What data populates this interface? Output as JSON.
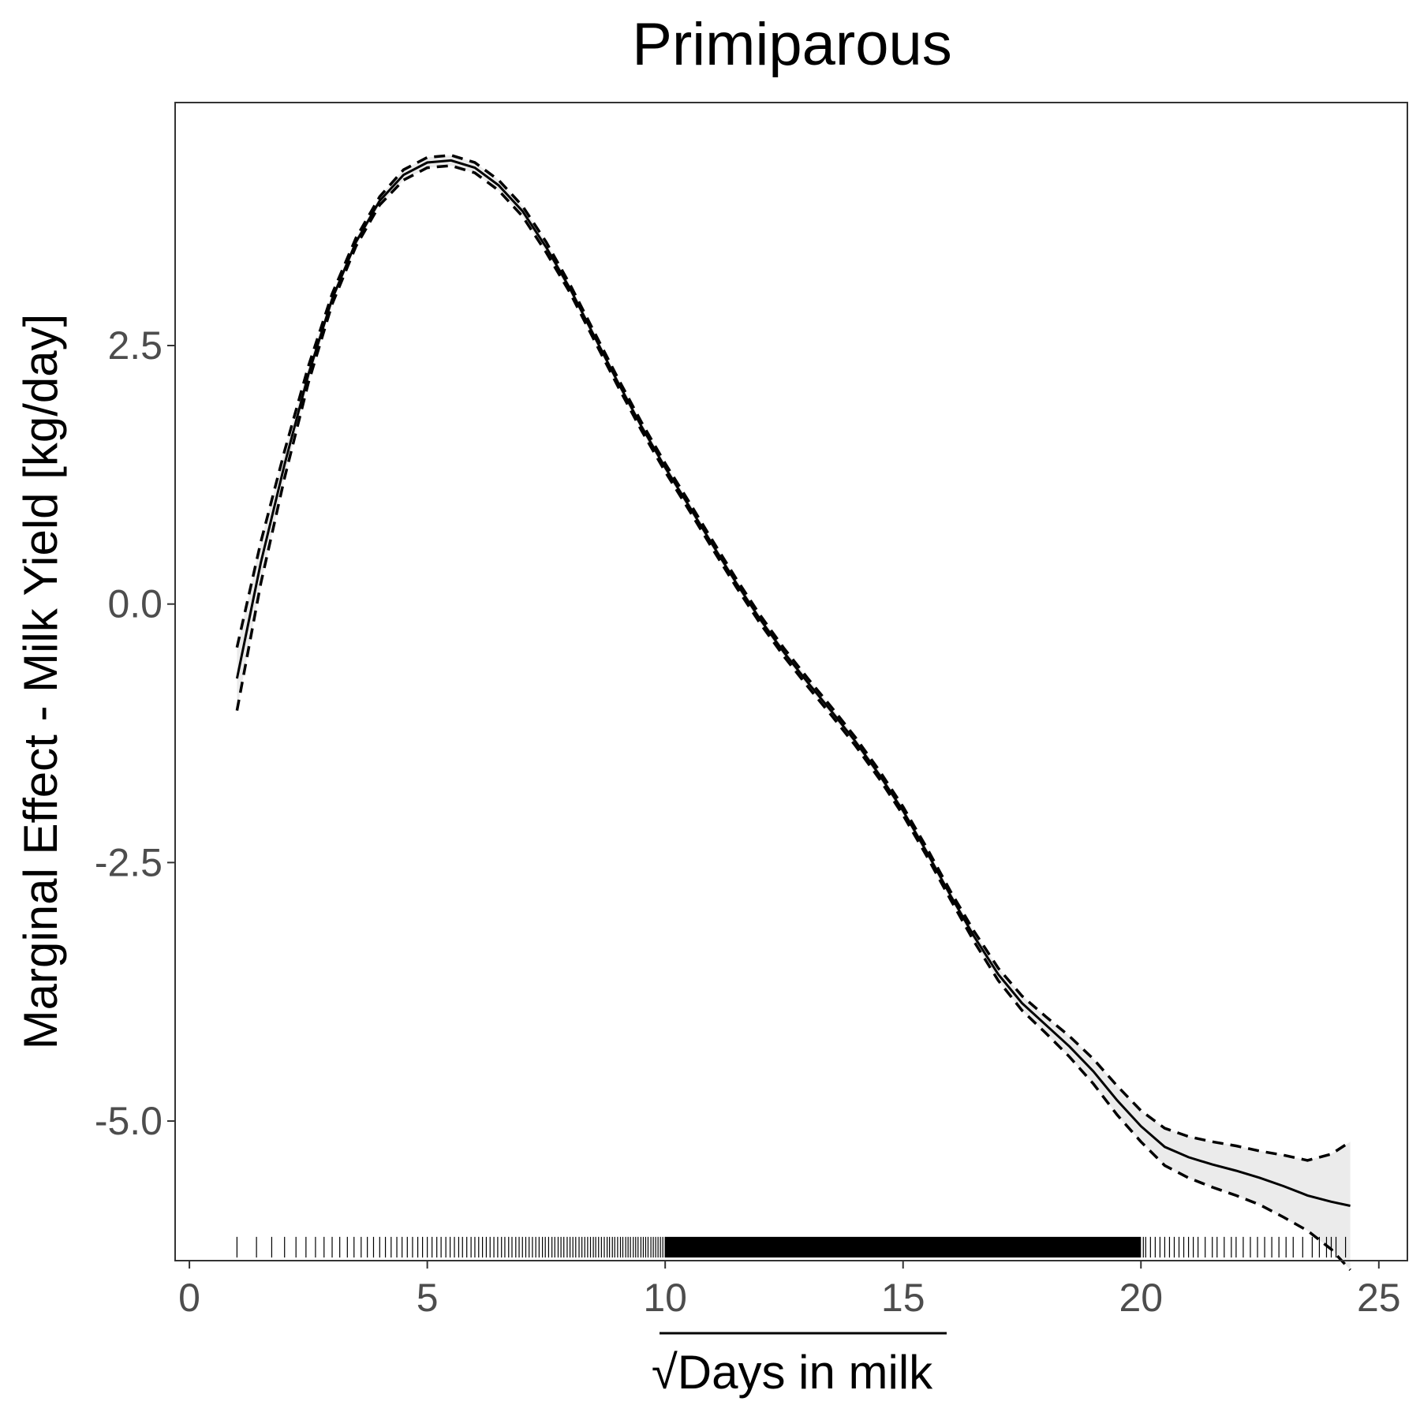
{
  "chart_data": {
    "type": "line",
    "title": "Primiparous",
    "xlabel": "Days in milk",
    "xlabel_prefix": "√",
    "ylabel": "Marginal Effect - Milk Yield [kg/day]",
    "xlim": [
      -0.3,
      25.6
    ],
    "ylim": [
      -6.35,
      4.85
    ],
    "x_ticks": [
      0,
      5,
      10,
      15,
      20,
      25
    ],
    "x_tick_labels": [
      "0",
      "5",
      "10",
      "15",
      "20",
      "25"
    ],
    "y_ticks": [
      2.5,
      0.0,
      -2.5,
      -5.0
    ],
    "y_tick_labels": [
      "2.5",
      "0.0",
      "-2.5",
      "-5.0"
    ],
    "grid": false,
    "legend": "none",
    "colors": {
      "line": "#000000",
      "band": "#ebebeb",
      "axis": "#333333",
      "tick_text": "#4d4d4d"
    },
    "series": [
      {
        "style": "solid",
        "x": [
          1.0,
          1.5,
          2.0,
          2.5,
          3.0,
          3.5,
          4.0,
          4.5,
          5.0,
          5.5,
          6.0,
          6.5,
          7.0,
          7.5,
          8.0,
          8.5,
          9.0,
          9.5,
          10.0,
          10.5,
          11.0,
          11.5,
          12.0,
          12.5,
          13.0,
          13.5,
          14.0,
          14.5,
          15.0,
          15.5,
          16.0,
          16.5,
          17.0,
          17.5,
          18.0,
          18.5,
          19.0,
          19.5,
          20.0,
          20.5,
          21.0,
          21.5,
          22.0,
          22.5,
          23.0,
          23.5,
          24.0,
          24.4
        ],
        "values": [
          -0.72,
          0.4,
          1.35,
          2.22,
          2.95,
          3.5,
          3.9,
          4.15,
          4.27,
          4.29,
          4.22,
          4.05,
          3.8,
          3.45,
          3.05,
          2.6,
          2.15,
          1.72,
          1.32,
          0.95,
          0.57,
          0.2,
          -0.15,
          -0.47,
          -0.76,
          -1.04,
          -1.33,
          -1.65,
          -2.0,
          -2.4,
          -2.82,
          -3.22,
          -3.58,
          -3.86,
          -4.07,
          -4.28,
          -4.52,
          -4.8,
          -5.05,
          -5.25,
          -5.35,
          -5.42,
          -5.48,
          -5.55,
          -5.63,
          -5.72,
          -5.78,
          -5.82
        ]
      },
      {
        "style": "dashed",
        "x": [
          1.0,
          1.5,
          2.0,
          2.5,
          3.0,
          3.5,
          4.0,
          4.5,
          5.0,
          5.5,
          6.0,
          6.5,
          7.0,
          7.5,
          8.0,
          8.5,
          9.0,
          9.5,
          10.0,
          10.5,
          11.0,
          11.5,
          12.0,
          12.5,
          13.0,
          13.5,
          14.0,
          14.5,
          15.0,
          15.5,
          16.0,
          16.5,
          17.0,
          17.5,
          18.0,
          18.5,
          19.0,
          19.5,
          20.0,
          20.5,
          21.0,
          21.5,
          22.0,
          22.5,
          23.0,
          23.5,
          24.0,
          24.4
        ],
        "values": [
          -0.42,
          0.6,
          1.48,
          2.3,
          3.0,
          3.54,
          3.94,
          4.2,
          4.32,
          4.34,
          4.27,
          4.1,
          3.85,
          3.5,
          3.09,
          2.64,
          2.19,
          1.76,
          1.36,
          0.99,
          0.61,
          0.24,
          -0.11,
          -0.43,
          -0.72,
          -1.0,
          -1.29,
          -1.61,
          -1.96,
          -2.36,
          -2.78,
          -3.17,
          -3.52,
          -3.79,
          -3.99,
          -4.18,
          -4.4,
          -4.66,
          -4.9,
          -5.07,
          -5.15,
          -5.2,
          -5.24,
          -5.29,
          -5.33,
          -5.38,
          -5.32,
          -5.2
        ]
      },
      {
        "style": "dashed",
        "x": [
          1.0,
          1.5,
          2.0,
          2.5,
          3.0,
          3.5,
          4.0,
          4.5,
          5.0,
          5.5,
          6.0,
          6.5,
          7.0,
          7.5,
          8.0,
          8.5,
          9.0,
          9.5,
          10.0,
          10.5,
          11.0,
          11.5,
          12.0,
          12.5,
          13.0,
          13.5,
          14.0,
          14.5,
          15.0,
          15.5,
          16.0,
          16.5,
          17.0,
          17.5,
          18.0,
          18.5,
          19.0,
          19.5,
          20.0,
          20.5,
          21.0,
          21.5,
          22.0,
          22.5,
          23.0,
          23.5,
          24.0,
          24.4
        ],
        "values": [
          -1.03,
          0.2,
          1.22,
          2.14,
          2.9,
          3.46,
          3.86,
          4.1,
          4.22,
          4.24,
          4.17,
          4.0,
          3.75,
          3.4,
          3.01,
          2.56,
          2.11,
          1.68,
          1.28,
          0.91,
          0.53,
          0.16,
          -0.19,
          -0.51,
          -0.8,
          -1.08,
          -1.37,
          -1.69,
          -2.04,
          -2.44,
          -2.86,
          -3.27,
          -3.64,
          -3.93,
          -4.15,
          -4.38,
          -4.64,
          -4.94,
          -5.2,
          -5.43,
          -5.55,
          -5.64,
          -5.72,
          -5.81,
          -5.93,
          -6.06,
          -6.24,
          -6.44
        ]
      }
    ],
    "rug": {
      "description_values_are_x_positions": true,
      "x": [
        1.0,
        1.41,
        1.73,
        2.0,
        2.24,
        2.45,
        2.65,
        2.83,
        3.0,
        3.16,
        3.32,
        3.46,
        3.61,
        3.74,
        3.87,
        4.0,
        4.12,
        4.24,
        4.36,
        4.47,
        4.58,
        4.69,
        4.8,
        4.9,
        5.0,
        5.1,
        5.2,
        5.29,
        5.39,
        5.48,
        5.57,
        5.66,
        5.74,
        5.83,
        5.92,
        6.0,
        6.08,
        6.16,
        6.24,
        6.32,
        6.4,
        6.48,
        6.56,
        6.63,
        6.71,
        6.78,
        6.86,
        6.93,
        7.0,
        7.07,
        7.14,
        7.21,
        7.28,
        7.35,
        7.42,
        7.48,
        7.55,
        7.62,
        7.68,
        7.75,
        7.81,
        7.87,
        7.94,
        8.0,
        8.06,
        8.12,
        8.19,
        8.25,
        8.31,
        8.37,
        8.43,
        8.49,
        8.54,
        8.6,
        8.66,
        8.72,
        8.78,
        8.83,
        8.89,
        8.94,
        9.0,
        9.06,
        9.11,
        9.17,
        9.22,
        9.27,
        9.33,
        9.38,
        9.43,
        9.49,
        9.54,
        9.59,
        9.64,
        9.7,
        9.75,
        9.8,
        9.85,
        9.9,
        9.95,
        10.0,
        20.05,
        20.1,
        20.2,
        20.3,
        20.4,
        20.5,
        20.6,
        20.7,
        20.8,
        20.9,
        21.0,
        21.1,
        21.2,
        21.35,
        21.5,
        21.6,
        21.75,
        21.9,
        22.0,
        22.15,
        22.3,
        22.45,
        22.6,
        22.75,
        22.9,
        23.05,
        23.2,
        23.4,
        23.6,
        23.75,
        23.9,
        24.0,
        24.1,
        24.3
      ],
      "dense_range": [
        10.0,
        20.0
      ]
    }
  }
}
